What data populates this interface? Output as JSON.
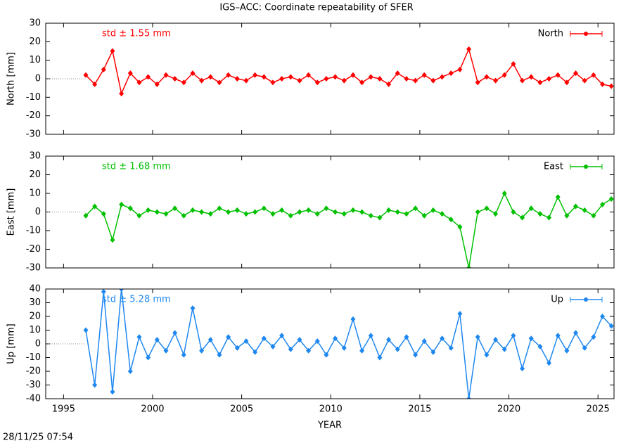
{
  "title": "IGS–ACC: Coordinate repeatability of SFER",
  "timestamp": "28/11/25 07:54",
  "chart_data": [
    {
      "type": "line",
      "ylabel": "North [mm]",
      "annotation": "std ± 1.55 mm",
      "xlim": [
        1994,
        2025.9
      ],
      "ylim": [
        -30,
        30
      ],
      "xticks": [
        1995,
        2000,
        2005,
        2010,
        2015,
        2020,
        2025
      ],
      "yticks": [
        -30,
        -20,
        -10,
        0,
        10,
        20,
        30
      ],
      "x": [
        1996.25,
        1996.75,
        1997.25,
        1997.75,
        1998.25,
        1998.75,
        1999.25,
        1999.75,
        2000.25,
        2000.75,
        2001.25,
        2001.75,
        2002.25,
        2002.75,
        2003.25,
        2003.75,
        2004.25,
        2004.75,
        2005.25,
        2005.75,
        2006.25,
        2006.75,
        2007.25,
        2007.75,
        2008.25,
        2008.75,
        2009.25,
        2009.75,
        2010.25,
        2010.75,
        2011.25,
        2011.75,
        2012.25,
        2012.75,
        2013.25,
        2013.75,
        2014.25,
        2014.75,
        2015.25,
        2015.75,
        2016.25,
        2016.75,
        2017.25,
        2017.75,
        2018.25,
        2018.75,
        2019.25,
        2019.75,
        2020.25,
        2020.75,
        2021.25,
        2021.75,
        2022.25,
        2022.75,
        2023.25,
        2023.75,
        2024.25,
        2024.75,
        2025.25,
        2025.75
      ],
      "series": [
        {
          "name": "North",
          "color": "#ff0000",
          "values": [
            2,
            -3,
            5,
            15,
            -8,
            3,
            -2,
            1,
            -3,
            2,
            0,
            -2,
            3,
            -1,
            1,
            -2,
            2,
            0,
            -1,
            2,
            1,
            -2,
            0,
            1,
            -1,
            2,
            -2,
            0,
            1,
            -1,
            2,
            -2,
            1,
            0,
            -3,
            3,
            0,
            -1,
            2,
            -1,
            1,
            3,
            5,
            16,
            -2,
            1,
            -1,
            2,
            8,
            -1,
            1,
            -2,
            0,
            2,
            -2,
            3,
            -1,
            2,
            -3,
            -4
          ]
        }
      ]
    },
    {
      "type": "line",
      "ylabel": "East [mm]",
      "annotation": "std ± 1.68 mm",
      "xlim": [
        1994,
        2025.9
      ],
      "ylim": [
        -30,
        30
      ],
      "xticks": [
        1995,
        2000,
        2005,
        2010,
        2015,
        2020,
        2025
      ],
      "yticks": [
        -30,
        -20,
        -10,
        0,
        10,
        20,
        30
      ],
      "x": [
        1996.25,
        1996.75,
        1997.25,
        1997.75,
        1998.25,
        1998.75,
        1999.25,
        1999.75,
        2000.25,
        2000.75,
        2001.25,
        2001.75,
        2002.25,
        2002.75,
        2003.25,
        2003.75,
        2004.25,
        2004.75,
        2005.25,
        2005.75,
        2006.25,
        2006.75,
        2007.25,
        2007.75,
        2008.25,
        2008.75,
        2009.25,
        2009.75,
        2010.25,
        2010.75,
        2011.25,
        2011.75,
        2012.25,
        2012.75,
        2013.25,
        2013.75,
        2014.25,
        2014.75,
        2015.25,
        2015.75,
        2016.25,
        2016.75,
        2017.25,
        2017.75,
        2018.25,
        2018.75,
        2019.25,
        2019.75,
        2020.25,
        2020.75,
        2021.25,
        2021.75,
        2022.25,
        2022.75,
        2023.25,
        2023.75,
        2024.25,
        2024.75,
        2025.25,
        2025.75
      ],
      "series": [
        {
          "name": "East",
          "color": "#00c000",
          "values": [
            -2,
            3,
            -1,
            -15,
            4,
            2,
            -2,
            1,
            0,
            -1,
            2,
            -2,
            1,
            0,
            -1,
            2,
            0,
            1,
            -1,
            0,
            2,
            -1,
            1,
            -2,
            0,
            1,
            -1,
            2,
            0,
            -1,
            1,
            0,
            -2,
            -3,
            1,
            0,
            -1,
            2,
            -2,
            1,
            -1,
            -4,
            -8,
            -30,
            0,
            2,
            -1,
            10,
            0,
            -3,
            2,
            -1,
            -3,
            8,
            -2,
            3,
            1,
            -2,
            4,
            7
          ]
        }
      ]
    },
    {
      "type": "line",
      "ylabel": "Up [mm]",
      "xlabel": "YEAR",
      "annotation": "std ± 5.28 mm",
      "xlim": [
        1994,
        2025.9
      ],
      "ylim": [
        -40,
        40
      ],
      "xticks": [
        1995,
        2000,
        2005,
        2010,
        2015,
        2020,
        2025
      ],
      "yticks": [
        -40,
        -30,
        -20,
        -10,
        0,
        10,
        20,
        30,
        40
      ],
      "x": [
        1996.25,
        1996.75,
        1997.25,
        1997.75,
        1998.25,
        1998.75,
        1999.25,
        1999.75,
        2000.25,
        2000.75,
        2001.25,
        2001.75,
        2002.25,
        2002.75,
        2003.25,
        2003.75,
        2004.25,
        2004.75,
        2005.25,
        2005.75,
        2006.25,
        2006.75,
        2007.25,
        2007.75,
        2008.25,
        2008.75,
        2009.25,
        2009.75,
        2010.25,
        2010.75,
        2011.25,
        2011.75,
        2012.25,
        2012.75,
        2013.25,
        2013.75,
        2014.25,
        2014.75,
        2015.25,
        2015.75,
        2016.25,
        2016.75,
        2017.25,
        2017.75,
        2018.25,
        2018.75,
        2019.25,
        2019.75,
        2020.25,
        2020.75,
        2021.25,
        2021.75,
        2022.25,
        2022.75,
        2023.25,
        2023.75,
        2024.25,
        2024.75,
        2025.25,
        2025.75
      ],
      "series": [
        {
          "name": "Up",
          "color": "#1e88f0",
          "values": [
            10,
            -30,
            38,
            -35,
            40,
            -20,
            5,
            -10,
            3,
            -5,
            8,
            -8,
            26,
            -5,
            3,
            -8,
            5,
            -3,
            2,
            -6,
            4,
            -2,
            6,
            -4,
            3,
            -5,
            2,
            -8,
            4,
            -3,
            18,
            -5,
            6,
            -10,
            3,
            -4,
            5,
            -8,
            2,
            -6,
            4,
            -3,
            22,
            -40,
            5,
            -8,
            3,
            -4,
            6,
            -18,
            4,
            -2,
            -14,
            6,
            -5,
            8,
            -3,
            5,
            20,
            13
          ]
        }
      ]
    }
  ]
}
